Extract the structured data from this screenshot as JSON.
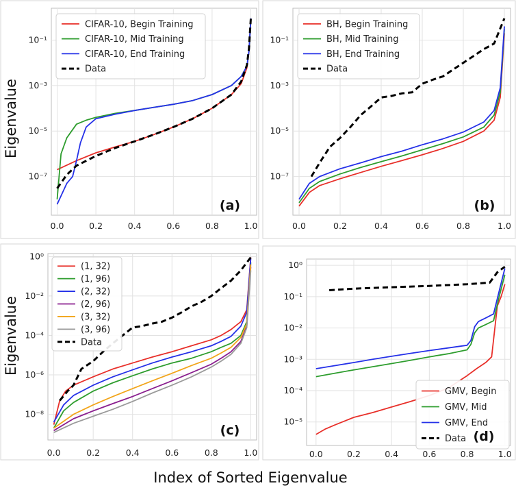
{
  "ylabel_top": "Eigenvalue",
  "ylabel_bottom": "Eigenvalue",
  "xlabel": "Index of Sorted Eigenvalue",
  "chart_data": [
    {
      "panel": "(a)",
      "type": "line",
      "ylog": true,
      "xlim": [
        -0.03,
        1.03
      ],
      "ylim_log10": [
        -8.7,
        0.4
      ],
      "xticks": [
        0.0,
        0.2,
        0.4,
        0.6,
        0.8,
        1.0
      ],
      "yticks_exp": [
        -1,
        -3,
        -5,
        -7
      ],
      "grid": true,
      "legend_position": "top-left",
      "series": [
        {
          "name": "CIFAR-10, Begin Training",
          "color": "#e8302a",
          "style": "solid",
          "x": [
            0,
            0.1,
            0.2,
            0.3,
            0.4,
            0.5,
            0.6,
            0.7,
            0.8,
            0.9,
            0.95,
            0.98,
            0.99,
            1.0
          ],
          "y": [
            2e-07,
            5e-07,
            1.1e-06,
            2e-06,
            3.5e-06,
            7e-06,
            1.5e-05,
            3.5e-05,
            0.0001,
            0.0004,
            0.0012,
            0.006,
            0.03,
            0.8
          ]
        },
        {
          "name": "CIFAR-10, Mid Training",
          "color": "#2e9d2e",
          "style": "solid",
          "x": [
            0,
            0.02,
            0.05,
            0.1,
            0.15,
            0.2,
            0.3,
            0.4,
            0.5,
            0.6,
            0.7,
            0.8,
            0.9,
            0.95,
            0.98,
            0.99,
            1.0
          ],
          "y": [
            1e-08,
            1e-06,
            5e-06,
            2e-05,
            3e-05,
            4e-05,
            6e-05,
            8e-05,
            0.00011,
            0.00015,
            0.00022,
            0.0004,
            0.001,
            0.0025,
            0.007,
            0.03,
            0.8
          ]
        },
        {
          "name": "CIFAR-10, End Training",
          "color": "#2531e8",
          "style": "solid",
          "x": [
            0,
            0.05,
            0.08,
            0.1,
            0.12,
            0.15,
            0.2,
            0.3,
            0.4,
            0.5,
            0.6,
            0.7,
            0.8,
            0.9,
            0.95,
            0.98,
            0.99,
            1.0
          ],
          "y": [
            6e-09,
            5e-08,
            1e-07,
            5e-07,
            3e-06,
            1.5e-05,
            3.5e-05,
            5.5e-05,
            8e-05,
            0.00011,
            0.00015,
            0.00022,
            0.0004,
            0.001,
            0.0025,
            0.007,
            0.03,
            0.9
          ]
        },
        {
          "name": "Data",
          "color": "#000000",
          "style": "dashed",
          "x": [
            0,
            0.05,
            0.1,
            0.2,
            0.3,
            0.4,
            0.5,
            0.6,
            0.7,
            0.8,
            0.9,
            0.95,
            0.98,
            0.99,
            1.0
          ],
          "y": [
            3e-08,
            1.2e-07,
            3e-07,
            8e-07,
            1.8e-06,
            3.5e-06,
            7e-06,
            1.5e-05,
            3.5e-05,
            0.0001,
            0.0004,
            0.0015,
            0.008,
            0.04,
            0.9
          ]
        }
      ]
    },
    {
      "panel": "(b)",
      "type": "line",
      "ylog": true,
      "xlim": [
        -0.03,
        1.03
      ],
      "ylim_log10": [
        -8.7,
        0.4
      ],
      "xticks": [
        0.0,
        0.2,
        0.4,
        0.6,
        0.8,
        1.0
      ],
      "yticks_exp": [
        -1,
        -3,
        -5,
        -7
      ],
      "grid": true,
      "legend_position": "top-left",
      "series": [
        {
          "name": "BH, Begin Training",
          "color": "#e8302a",
          "style": "solid",
          "x": [
            0,
            0.05,
            0.1,
            0.2,
            0.3,
            0.4,
            0.5,
            0.6,
            0.7,
            0.8,
            0.9,
            0.95,
            0.98,
            1.0
          ],
          "y": [
            5e-09,
            2e-08,
            4e-08,
            8e-08,
            1.5e-07,
            2.8e-07,
            5e-07,
            9e-07,
            1.7e-06,
            3.5e-06,
            1e-05,
            3e-05,
            0.0003,
            0.2
          ]
        },
        {
          "name": "BH, Mid Training",
          "color": "#2e9d2e",
          "style": "solid",
          "x": [
            0,
            0.05,
            0.1,
            0.2,
            0.3,
            0.4,
            0.5,
            0.6,
            0.7,
            0.8,
            0.9,
            0.95,
            0.98,
            1.0
          ],
          "y": [
            7e-09,
            3e-08,
            6e-08,
            1.3e-07,
            2.5e-07,
            4.5e-07,
            8e-07,
            1.5e-06,
            2.8e-06,
            5.5e-06,
            1.5e-05,
            5e-05,
            0.0005,
            0.3
          ]
        },
        {
          "name": "BH, End Training",
          "color": "#2531e8",
          "style": "solid",
          "x": [
            0,
            0.05,
            0.1,
            0.2,
            0.3,
            0.4,
            0.5,
            0.6,
            0.7,
            0.8,
            0.9,
            0.95,
            0.98,
            1.0
          ],
          "y": [
            1e-08,
            5e-08,
            1e-07,
            2.2e-07,
            4e-07,
            7.5e-07,
            1.3e-06,
            2.5e-06,
            4.5e-06,
            9e-06,
            2.5e-05,
            8e-05,
            0.0008,
            0.4
          ]
        },
        {
          "name": "Data",
          "color": "#000000",
          "style": "dashed",
          "x": [
            0.06,
            0.1,
            0.15,
            0.2,
            0.25,
            0.3,
            0.35,
            0.4,
            0.45,
            0.5,
            0.55,
            0.6,
            0.65,
            0.7,
            0.75,
            0.8,
            0.85,
            0.9,
            0.95,
            1.0
          ],
          "y": [
            1e-07,
            4e-07,
            2e-06,
            5e-06,
            1.5e-05,
            5e-05,
            0.00012,
            0.0003,
            0.00035,
            0.00045,
            0.0005,
            0.0012,
            0.0018,
            0.0025,
            0.005,
            0.01,
            0.02,
            0.04,
            0.07,
            0.9
          ]
        }
      ]
    },
    {
      "panel": "(c)",
      "type": "line",
      "ylog": true,
      "xlim": [
        -0.03,
        1.03
      ],
      "ylim_log10": [
        -9.3,
        0.15
      ],
      "xticks": [
        0.0,
        0.2,
        0.4,
        0.6,
        0.8,
        1.0
      ],
      "yticks_exp": [
        0,
        -2,
        -4,
        -6,
        -8
      ],
      "grid": true,
      "legend_position": "top-left",
      "series": [
        {
          "name": "(1, 32)",
          "color": "#e8302a",
          "style": "solid",
          "x": [
            0,
            0.03,
            0.06,
            0.1,
            0.2,
            0.3,
            0.4,
            0.5,
            0.6,
            0.7,
            0.8,
            0.85,
            0.9,
            0.95,
            0.98,
            1.0
          ],
          "y": [
            3e-09,
            5e-08,
            1.5e-07,
            3e-07,
            8e-07,
            2e-06,
            4e-06,
            8e-06,
            1.5e-05,
            3e-05,
            6e-05,
            0.0001,
            0.0002,
            0.0005,
            0.002,
            0.9
          ]
        },
        {
          "name": "(1, 96)",
          "color": "#2e9d2e",
          "style": "solid",
          "x": [
            0,
            0.05,
            0.1,
            0.2,
            0.3,
            0.4,
            0.5,
            0.6,
            0.7,
            0.8,
            0.85,
            0.9,
            0.95,
            0.98,
            1.0
          ],
          "y": [
            2e-09,
            1.5e-08,
            4e-08,
            1.5e-07,
            4e-07,
            9e-07,
            2e-06,
            4e-06,
            7e-06,
            1.5e-05,
            2.5e-05,
            4e-05,
            0.0001,
            0.0005,
            0.5
          ]
        },
        {
          "name": "(2, 32)",
          "color": "#2531e8",
          "style": "solid",
          "x": [
            0,
            0.05,
            0.1,
            0.2,
            0.3,
            0.4,
            0.5,
            0.6,
            0.7,
            0.8,
            0.85,
            0.9,
            0.95,
            0.98,
            1.0
          ],
          "y": [
            4e-09,
            3e-08,
            9e-08,
            3e-07,
            8e-07,
            1.8e-06,
            4e-06,
            8e-06,
            1.5e-05,
            3e-05,
            5e-05,
            9e-05,
            0.0003,
            0.0015,
            0.8
          ]
        },
        {
          "name": "(2, 96)",
          "color": "#8a1f8f",
          "style": "solid",
          "x": [
            0,
            0.1,
            0.2,
            0.3,
            0.4,
            0.5,
            0.6,
            0.7,
            0.8,
            0.85,
            0.9,
            0.95,
            0.98,
            1.0
          ],
          "y": [
            1.5e-09,
            6e-09,
            1.5e-08,
            3.5e-08,
            8e-08,
            2e-07,
            5e-07,
            1.3e-06,
            3.5e-06,
            7e-06,
            1.5e-05,
            5e-05,
            0.0003,
            0.3
          ]
        },
        {
          "name": "(3, 32)",
          "color": "#f2a51a",
          "style": "solid",
          "x": [
            0,
            0.1,
            0.2,
            0.3,
            0.4,
            0.5,
            0.6,
            0.7,
            0.8,
            0.85,
            0.9,
            0.95,
            0.98,
            1.0
          ],
          "y": [
            2e-09,
            1e-08,
            3e-08,
            8e-08,
            2e-07,
            5e-07,
            1.2e-06,
            3e-06,
            7e-06,
            1.3e-05,
            2.5e-05,
            8e-05,
            0.0004,
            0.4
          ]
        },
        {
          "name": "(3, 96)",
          "color": "#9a9a9a",
          "style": "solid",
          "x": [
            0,
            0.1,
            0.2,
            0.3,
            0.4,
            0.5,
            0.6,
            0.7,
            0.8,
            0.85,
            0.9,
            0.95,
            0.98,
            1.0
          ],
          "y": [
            1.2e-09,
            3.5e-09,
            8e-09,
            1.8e-08,
            4.5e-08,
            1.2e-07,
            3e-07,
            8e-07,
            2.5e-06,
            5e-06,
            1.1e-05,
            4e-05,
            0.00025,
            0.2
          ]
        },
        {
          "name": "Data",
          "color": "#000000",
          "style": "dashed",
          "x": [
            0.03,
            0.07,
            0.1,
            0.14,
            0.2,
            0.25,
            0.3,
            0.35,
            0.4,
            0.45,
            0.5,
            0.55,
            0.6,
            0.65,
            0.7,
            0.75,
            0.8,
            0.85,
            0.9,
            0.95,
            1.0
          ],
          "y": [
            5e-08,
            1.5e-07,
            3e-07,
            2e-06,
            5e-06,
            1.5e-05,
            4e-05,
            0.0001,
            0.00025,
            0.0003,
            0.0004,
            0.0005,
            0.0008,
            0.0015,
            0.003,
            0.005,
            0.01,
            0.025,
            0.06,
            0.2,
            0.9
          ]
        }
      ]
    },
    {
      "panel": "(d)",
      "type": "line",
      "ylog": true,
      "xlim": [
        -0.05,
        1.03
      ],
      "ylim_log10": [
        -5.75,
        0.2
      ],
      "xticks": [
        0.0,
        0.2,
        0.4,
        0.6,
        0.8,
        1.0
      ],
      "yticks_exp": [
        0,
        -1,
        -2,
        -3,
        -4,
        -5
      ],
      "grid": true,
      "legend_position": "bottom-right",
      "series": [
        {
          "name": "GMV, Begin",
          "color": "#e8302a",
          "style": "solid",
          "x": [
            0,
            0.05,
            0.1,
            0.2,
            0.3,
            0.4,
            0.5,
            0.6,
            0.7,
            0.8,
            0.85,
            0.9,
            0.93,
            0.96,
            0.98,
            1.0
          ],
          "y": [
            4e-06,
            6e-06,
            8e-06,
            1.4e-05,
            2e-05,
            3e-05,
            4.5e-05,
            7e-05,
            0.00012,
            0.0003,
            0.0005,
            0.0008,
            0.0012,
            0.05,
            0.1,
            0.25
          ]
        },
        {
          "name": "GMV, Mid",
          "color": "#2e9d2e",
          "style": "solid",
          "x": [
            0,
            0.1,
            0.2,
            0.3,
            0.4,
            0.5,
            0.6,
            0.7,
            0.8,
            0.82,
            0.84,
            0.86,
            0.9,
            0.94,
            0.97,
            1.0
          ],
          "y": [
            0.00028,
            0.00036,
            0.00046,
            0.00058,
            0.00073,
            0.00093,
            0.0012,
            0.0015,
            0.002,
            0.003,
            0.007,
            0.01,
            0.013,
            0.017,
            0.1,
            0.5
          ]
        },
        {
          "name": "GMV, End",
          "color": "#2531e8",
          "style": "solid",
          "x": [
            0,
            0.1,
            0.2,
            0.3,
            0.4,
            0.5,
            0.6,
            0.7,
            0.8,
            0.82,
            0.84,
            0.86,
            0.9,
            0.94,
            0.97,
            1.0
          ],
          "y": [
            0.0005,
            0.00063,
            0.00079,
            0.001,
            0.00125,
            0.00155,
            0.0019,
            0.0023,
            0.0028,
            0.004,
            0.011,
            0.016,
            0.021,
            0.028,
            0.15,
            0.8
          ]
        },
        {
          "name": "Data",
          "color": "#000000",
          "style": "dashed",
          "x": [
            0.07,
            0.2,
            0.4,
            0.6,
            0.8,
            0.92,
            0.96,
            1.0
          ],
          "y": [
            0.16,
            0.18,
            0.2,
            0.22,
            0.25,
            0.28,
            0.6,
            0.9
          ]
        }
      ]
    }
  ]
}
